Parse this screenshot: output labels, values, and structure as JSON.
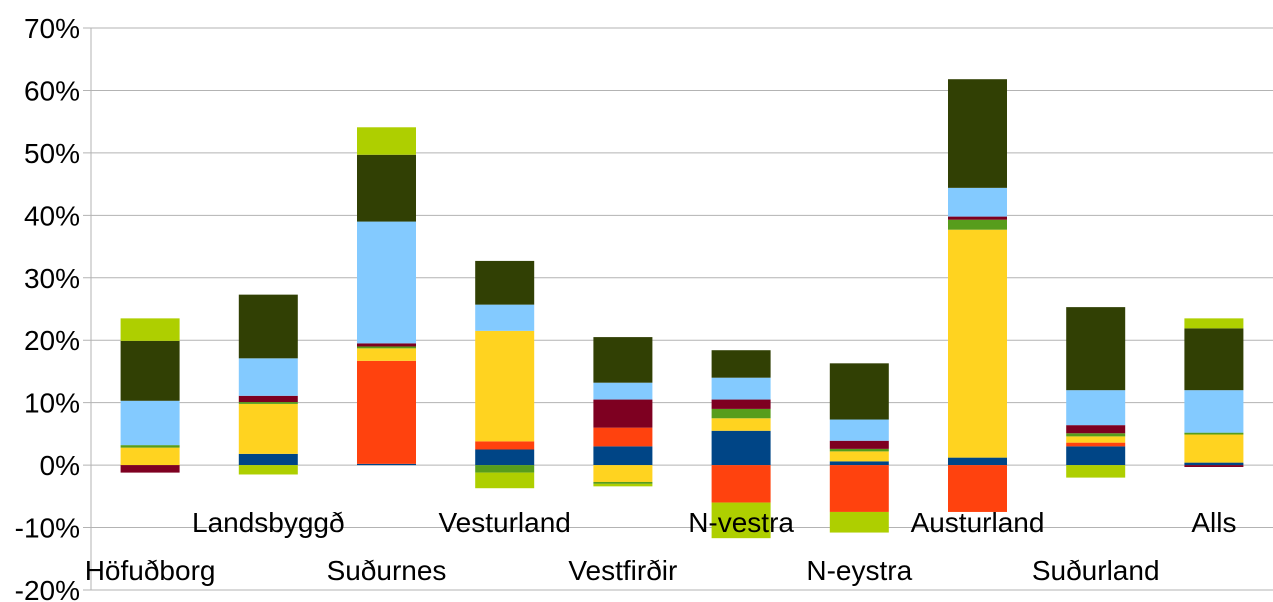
{
  "chart_data": {
    "type": "bar",
    "stacked": true,
    "title": "",
    "xlabel": "",
    "ylabel": "",
    "ylim": [
      -20,
      70
    ],
    "y_ticks": [
      "-20%",
      "-10%",
      "0%",
      "10%",
      "20%",
      "30%",
      "40%",
      "50%",
      "60%",
      "70%"
    ],
    "grid": "horizontal",
    "legend": "none",
    "categories": [
      "Höfuðborg",
      "Landsbyggð",
      "Suðurnes",
      "Vesturland",
      "Vestfirðir",
      "N-vestra",
      "N-eystra",
      "Austurland",
      "Suðurland",
      "Alls"
    ],
    "series": [
      {
        "color": "#004586",
        "values": [
          0,
          1.8,
          0.2,
          2.5,
          3.0,
          5.5,
          0.6,
          1.2,
          3.0,
          0.4
        ]
      },
      {
        "color": "#ff420e",
        "values": [
          0,
          0,
          16.5,
          1.3,
          3.0,
          -6.0,
          -7.5,
          -7.5,
          0.6,
          0
        ]
      },
      {
        "color": "#ffd320",
        "values": [
          2.8,
          8.0,
          2.0,
          17.7,
          -2.7,
          2.0,
          1.6,
          36.5,
          1.0,
          4.5
        ]
      },
      {
        "color": "#579d1c",
        "values": [
          0.4,
          0.3,
          0.3,
          -1.2,
          -0.3,
          1.5,
          0.4,
          1.6,
          0.5,
          0.3
        ]
      },
      {
        "color": "#7e0021",
        "values": [
          -1.2,
          1.0,
          0.5,
          0,
          4.5,
          1.5,
          1.3,
          0.5,
          1.3,
          -0.3
        ]
      },
      {
        "color": "#83caff",
        "values": [
          7.1,
          6.0,
          19.5,
          4.2,
          2.7,
          3.5,
          3.4,
          4.6,
          5.6,
          6.8
        ]
      },
      {
        "color": "#314004",
        "values": [
          9.6,
          10.2,
          10.7,
          7.0,
          7.3,
          4.4,
          9.0,
          17.4,
          13.3,
          9.9
        ]
      },
      {
        "color": "#aecf00",
        "values": [
          3.6,
          -1.5,
          4.4,
          -2.5,
          -0.4,
          -5.7,
          -3.3,
          0,
          -2.0,
          1.6
        ]
      }
    ]
  }
}
